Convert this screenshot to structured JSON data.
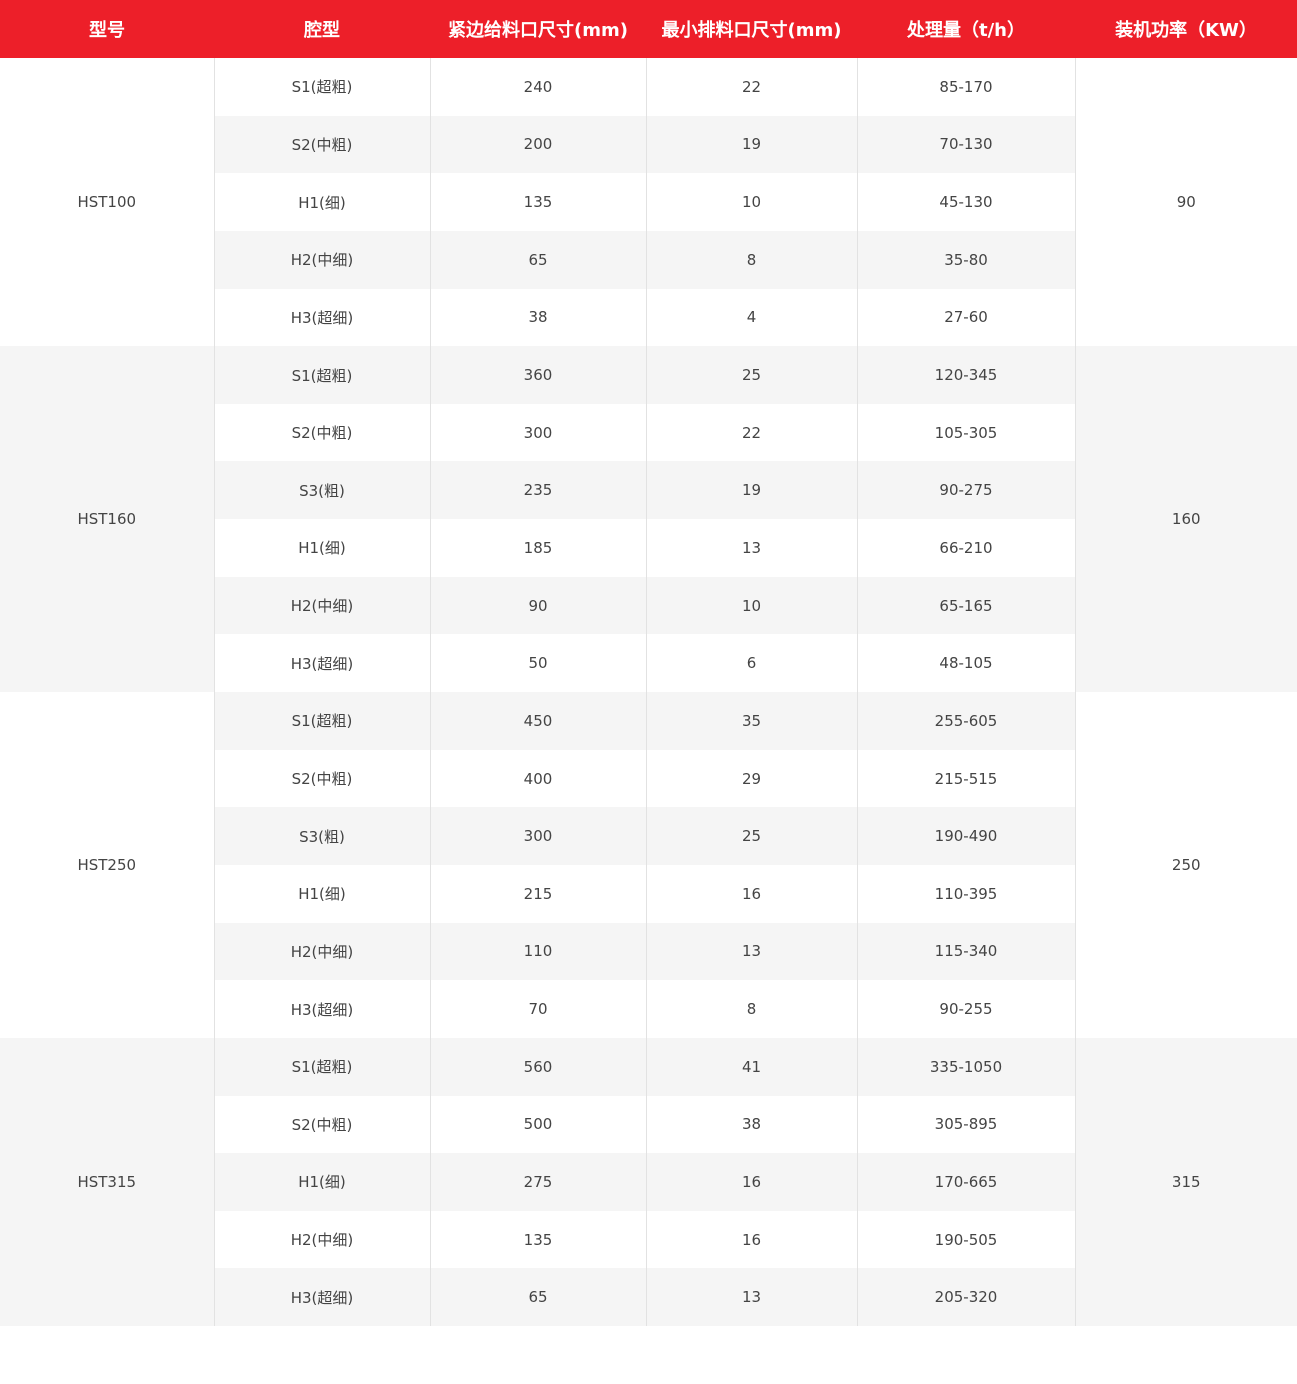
{
  "colors": {
    "header_bg": "#ed1f29",
    "stripe_bg": "#f5f5f5"
  },
  "headers": [
    "型号",
    "腔型",
    "紧边给料口尺寸(mm)",
    "最小排料口尺寸(mm)",
    "处理量（t/h）",
    "装机功率（KW）"
  ],
  "groups": [
    {
      "model": "HST100",
      "power": "90",
      "rows": [
        [
          "S1(超粗)",
          "240",
          "22",
          "85-170"
        ],
        [
          "S2(中粗)",
          "200",
          "19",
          "70-130"
        ],
        [
          "H1(细)",
          "135",
          "10",
          "45-130"
        ],
        [
          "H2(中细)",
          "65",
          "8",
          "35-80"
        ],
        [
          "H3(超细)",
          "38",
          "4",
          "27-60"
        ]
      ]
    },
    {
      "model": "HST160",
      "power": "160",
      "rows": [
        [
          "S1(超粗)",
          "360",
          "25",
          "120-345"
        ],
        [
          "S2(中粗)",
          "300",
          "22",
          "105-305"
        ],
        [
          "S3(粗)",
          "235",
          "19",
          "90-275"
        ],
        [
          "H1(细)",
          "185",
          "13",
          "66-210"
        ],
        [
          "H2(中细)",
          "90",
          "10",
          "65-165"
        ],
        [
          "H3(超细)",
          "50",
          "6",
          "48-105"
        ]
      ]
    },
    {
      "model": "HST250",
      "power": "250",
      "rows": [
        [
          "S1(超粗)",
          "450",
          "35",
          "255-605"
        ],
        [
          "S2(中粗)",
          "400",
          "29",
          "215-515"
        ],
        [
          "S3(粗)",
          "300",
          "25",
          "190-490"
        ],
        [
          "H1(细)",
          "215",
          "16",
          "110-395"
        ],
        [
          "H2(中细)",
          "110",
          "13",
          "115-340"
        ],
        [
          "H3(超细)",
          "70",
          "8",
          "90-255"
        ]
      ]
    },
    {
      "model": "HST315",
      "power": "315",
      "rows": [
        [
          "S1(超粗)",
          "560",
          "41",
          "335-1050"
        ],
        [
          "S2(中粗)",
          "500",
          "38",
          "305-895"
        ],
        [
          "H1(细)",
          "275",
          "16",
          "170-665"
        ],
        [
          "H2(中细)",
          "135",
          "16",
          "190-505"
        ],
        [
          "H3(超细)",
          "65",
          "13",
          "205-320"
        ]
      ]
    }
  ]
}
